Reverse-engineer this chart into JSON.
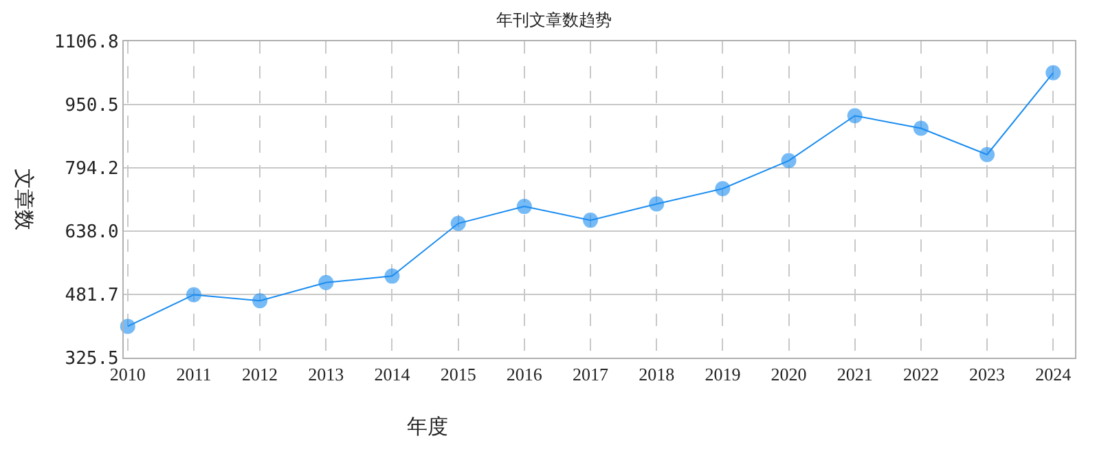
{
  "chart_data": {
    "type": "line",
    "title": "年刊文章数趋势",
    "xlabel": "年度",
    "ylabel": "文章数",
    "categories": [
      "2010",
      "2011",
      "2012",
      "2013",
      "2014",
      "2015",
      "2016",
      "2017",
      "2018",
      "2019",
      "2020",
      "2021",
      "2022",
      "2023",
      "2024"
    ],
    "series": [
      {
        "color": "#1a8cf0",
        "values": [
          403,
          481,
          466,
          511,
          527,
          657,
          699,
          665,
          705,
          743,
          812,
          923,
          892,
          827,
          1029
        ]
      }
    ],
    "ylim": [
      325.5,
      1106.8
    ],
    "yticks": [
      {
        "value": 325.5,
        "label": "325.5"
      },
      {
        "value": 481.7,
        "label": "481.7"
      },
      {
        "value": 638,
        "label": "638.0"
      },
      {
        "value": 794.2,
        "label": "794.2"
      },
      {
        "value": 950.5,
        "label": "950.5"
      },
      {
        "value": 1106.8,
        "label": "1106.8"
      }
    ],
    "grid": true,
    "marker": "circle",
    "line_style": "solid"
  }
}
